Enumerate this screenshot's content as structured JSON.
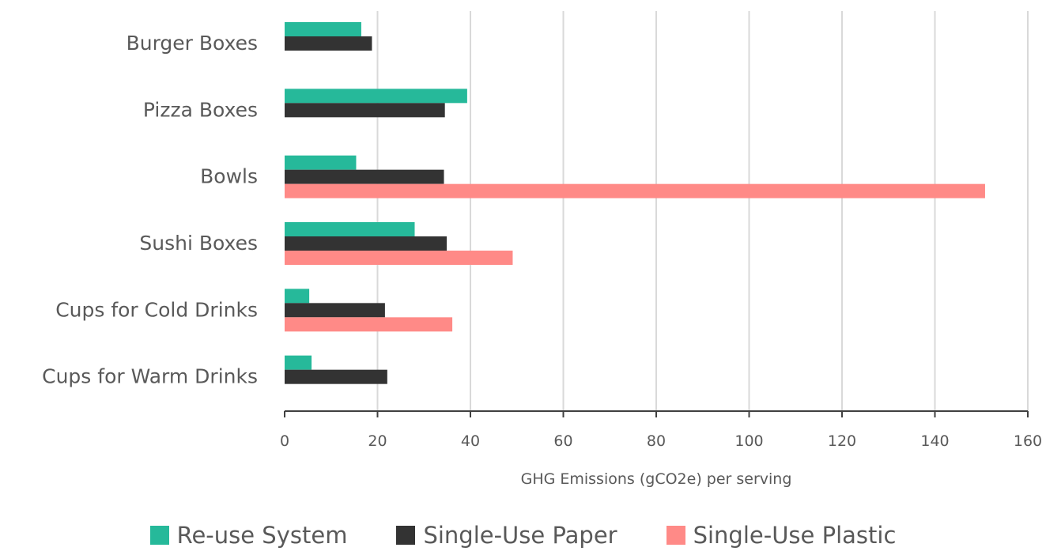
{
  "chart_data": {
    "type": "bar",
    "orientation": "horizontal",
    "categories": [
      "Burger Boxes",
      "Pizza Boxes",
      "Bowls",
      "Sushi Boxes",
      "Cups for Cold Drinks",
      "Cups for Warm Drinks"
    ],
    "series": [
      {
        "name": "Re-use System",
        "color": "#26b99a",
        "values": [
          16.5,
          39.3,
          15.4,
          28.0,
          5.3,
          5.8
        ]
      },
      {
        "name": "Single-Use Paper",
        "color": "#333333",
        "values": [
          18.8,
          34.5,
          34.3,
          34.9,
          21.6,
          22.1
        ]
      },
      {
        "name": "Single-Use Plastic",
        "color": "#ff8a87",
        "values": [
          null,
          null,
          150.8,
          49.1,
          36.1,
          null
        ]
      }
    ],
    "xlabel": "GHG Emissions (gCO2e) per serving",
    "ylabel": "",
    "xlim": [
      0,
      160
    ],
    "xticks": [
      "0",
      "20",
      "40",
      "60",
      "80",
      "100",
      "120",
      "140",
      "160"
    ],
    "grid": "vertical",
    "legend": "bottom"
  }
}
